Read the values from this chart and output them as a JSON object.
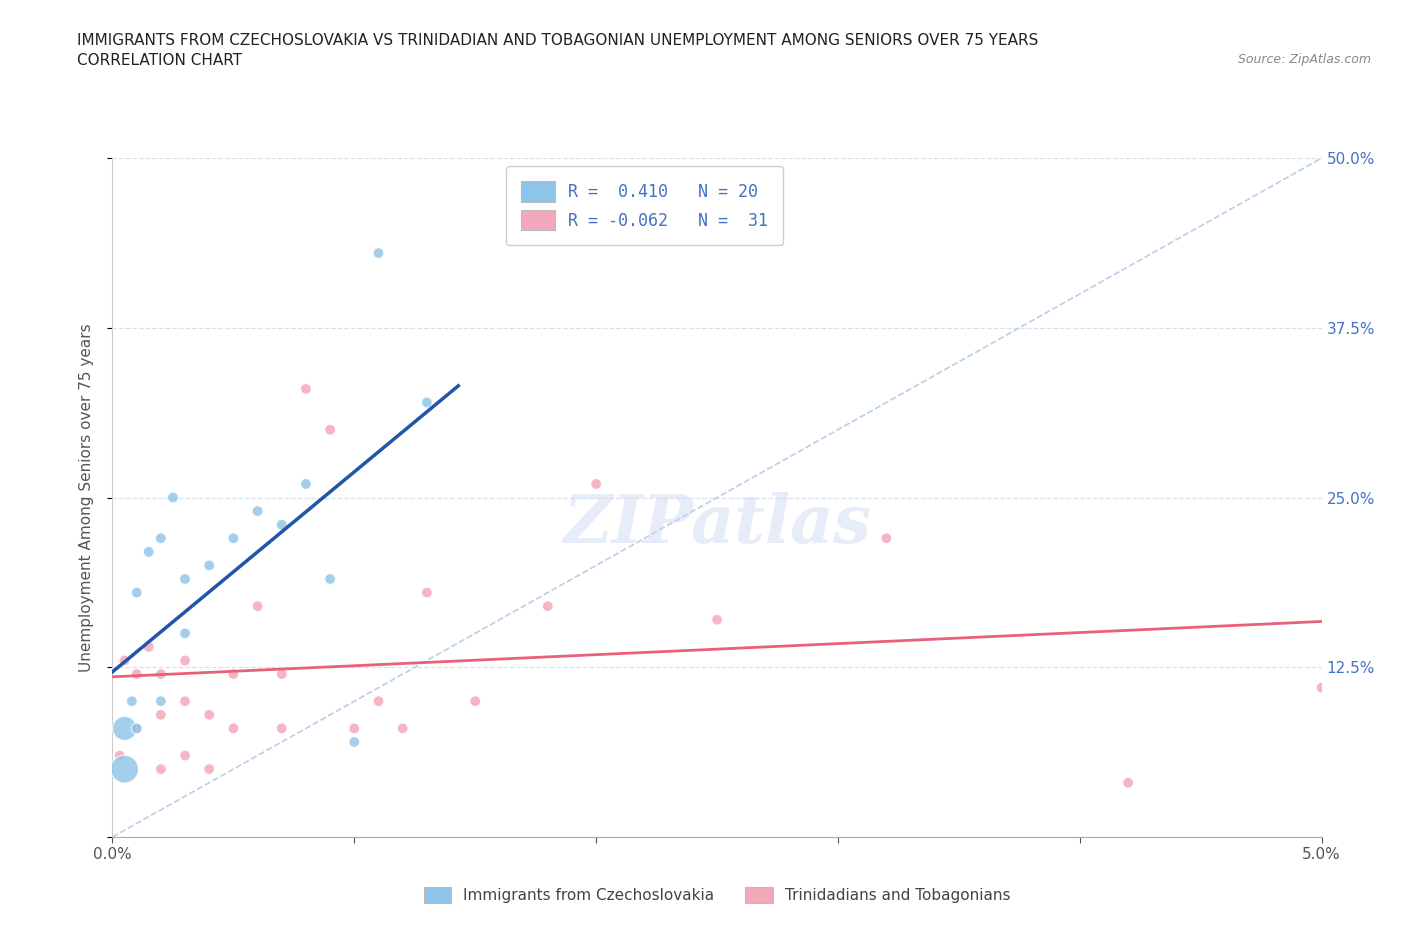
{
  "title_line1": "IMMIGRANTS FROM CZECHOSLOVAKIA VS TRINIDADIAN AND TOBAGONIAN UNEMPLOYMENT AMONG SENIORS OVER 75 YEARS",
  "title_line2": "CORRELATION CHART",
  "source_text": "Source: ZipAtlas.com",
  "ylabel": "Unemployment Among Seniors over 75 years",
  "watermark": "ZIPatlas",
  "xlim": [
    0.0,
    0.05
  ],
  "ylim": [
    0.0,
    0.5
  ],
  "xtick_positions": [
    0.0,
    0.01,
    0.02,
    0.03,
    0.04,
    0.05
  ],
  "xtick_labels": [
    "0.0%",
    "",
    "",
    "",
    "",
    "5.0%"
  ],
  "ytick_positions": [
    0.0,
    0.125,
    0.25,
    0.375,
    0.5
  ],
  "ytick_labels": [
    "",
    "12.5%",
    "25.0%",
    "37.5%",
    "50.0%"
  ],
  "R_blue": 0.41,
  "N_blue": 20,
  "R_pink": -0.062,
  "N_pink": 31,
  "legend_label_blue": "Immigrants from Czechoslovakia",
  "legend_label_pink": "Trinidadians and Tobagonians",
  "blue_color": "#8ec4e8",
  "pink_color": "#f4a8bc",
  "blue_line_color": "#2255aa",
  "pink_line_color": "#e8607a",
  "diagonal_color": "#b8cfe8",
  "grid_color": "#d8e0ec",
  "background_color": "#ffffff",
  "blue_scatter_x": [
    0.0005,
    0.0005,
    0.0008,
    0.001,
    0.001,
    0.0015,
    0.002,
    0.002,
    0.0025,
    0.003,
    0.003,
    0.004,
    0.005,
    0.006,
    0.007,
    0.008,
    0.009,
    0.01,
    0.011,
    0.013
  ],
  "blue_scatter_y": [
    0.05,
    0.08,
    0.1,
    0.08,
    0.18,
    0.21,
    0.1,
    0.22,
    0.25,
    0.15,
    0.19,
    0.2,
    0.22,
    0.24,
    0.23,
    0.26,
    0.19,
    0.07,
    0.43,
    0.32
  ],
  "blue_scatter_size": [
    400,
    300,
    60,
    60,
    60,
    60,
    60,
    60,
    60,
    60,
    60,
    60,
    60,
    60,
    60,
    60,
    60,
    60,
    60,
    60
  ],
  "pink_scatter_x": [
    0.0003,
    0.0005,
    0.001,
    0.001,
    0.0015,
    0.002,
    0.002,
    0.002,
    0.003,
    0.003,
    0.003,
    0.004,
    0.004,
    0.005,
    0.005,
    0.006,
    0.007,
    0.007,
    0.008,
    0.009,
    0.01,
    0.011,
    0.012,
    0.013,
    0.015,
    0.018,
    0.02,
    0.025,
    0.032,
    0.042,
    0.05
  ],
  "pink_scatter_y": [
    0.06,
    0.13,
    0.08,
    0.12,
    0.14,
    0.05,
    0.09,
    0.12,
    0.06,
    0.1,
    0.13,
    0.05,
    0.09,
    0.08,
    0.12,
    0.17,
    0.08,
    0.12,
    0.33,
    0.3,
    0.08,
    0.1,
    0.08,
    0.18,
    0.1,
    0.17,
    0.26,
    0.16,
    0.22,
    0.04,
    0.11
  ],
  "pink_scatter_size": [
    60,
    60,
    60,
    60,
    60,
    60,
    60,
    60,
    60,
    60,
    60,
    60,
    60,
    60,
    60,
    60,
    60,
    60,
    60,
    60,
    60,
    60,
    60,
    60,
    60,
    60,
    60,
    60,
    60,
    60,
    60
  ]
}
